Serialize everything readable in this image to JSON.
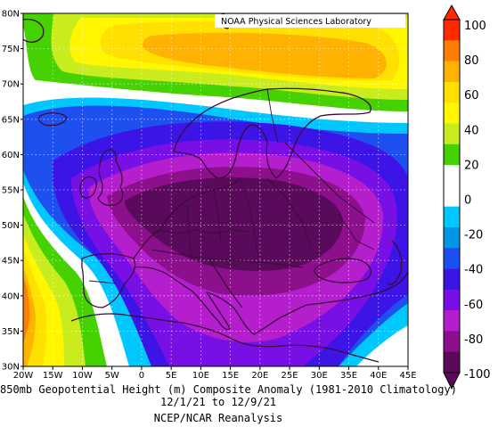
{
  "credit": "NOAA Physical Sciences Laboratory",
  "caption": {
    "line1": "850mb Geopotential Height (m) Composite Anomaly (1981-2010 Climatology)",
    "line2": "12/1/21  to 12/9/21",
    "line3": "NCEP/NCAR Reanalysis"
  },
  "map": {
    "lon_range": [
      -20,
      45
    ],
    "lat_range": [
      30,
      80
    ],
    "x_ticks": [
      "20W",
      "15W",
      "10W",
      "5W",
      "0",
      "5E",
      "10E",
      "15E",
      "20E",
      "25E",
      "30E",
      "35E",
      "40E",
      "45E"
    ],
    "y_ticks": [
      "30N",
      "35N",
      "40N",
      "45N",
      "50N",
      "55N",
      "60N",
      "65N",
      "70N",
      "75N",
      "80N"
    ]
  },
  "colorbar": {
    "labels": [
      "100",
      "80",
      "60",
      "40",
      "20",
      "0",
      "-20",
      "-40",
      "-60",
      "-80",
      "-100"
    ],
    "colors": [
      "#ff2a00",
      "#ff7d00",
      "#ffb300",
      "#ffe000",
      "#fff600",
      "#c8ec1e",
      "#46d200",
      "#ffffff",
      "#ffffff",
      "#00c8ff",
      "#0096e6",
      "#1e50f0",
      "#3c14e6",
      "#7810e6",
      "#b41ecd",
      "#8c0f8c",
      "#5a0a5a"
    ]
  }
}
